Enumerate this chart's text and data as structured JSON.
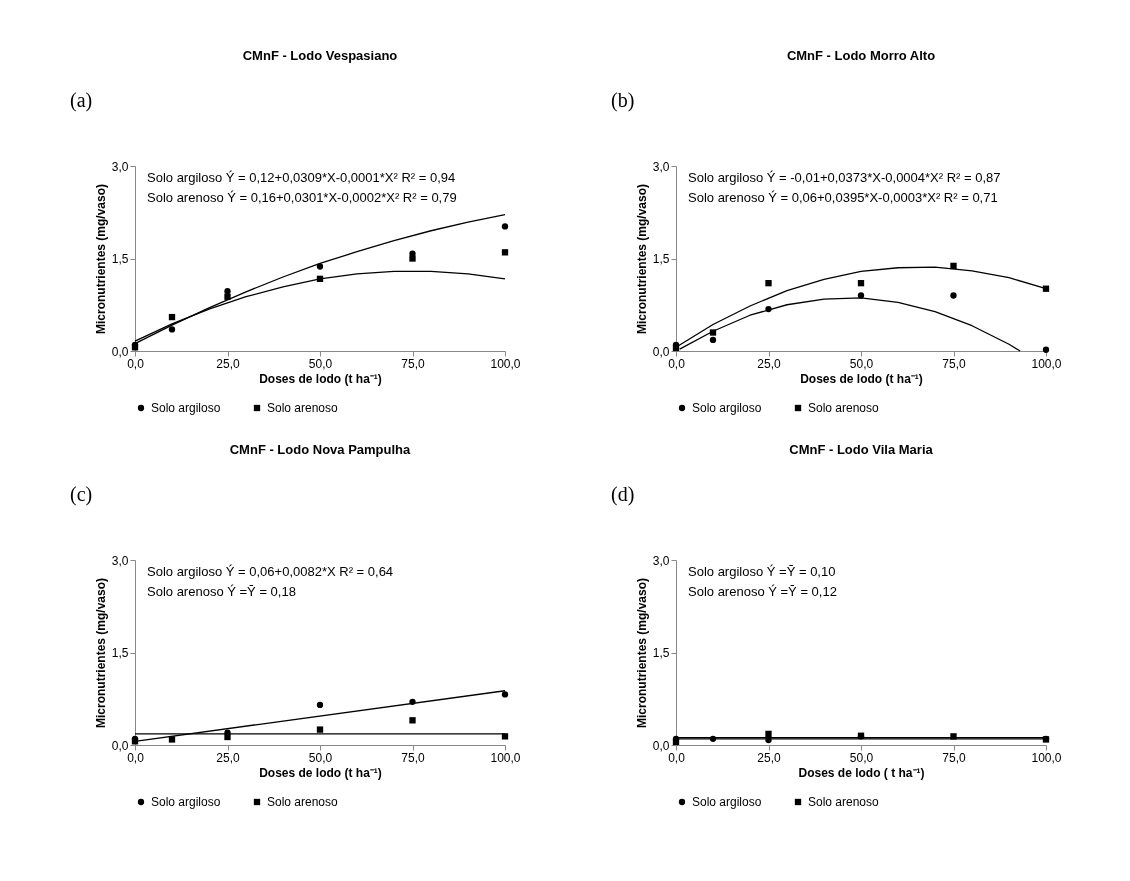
{
  "chart_data": [
    {
      "type": "scatter",
      "title": "CMnF - Lodo Vespasiano",
      "xlabel": "Doses de lodo (t ha⁻¹)",
      "ylabel": "Micronutrientes (mg/vaso)",
      "annotations": [
        "(a)",
        "Solo argiloso  Ý = 0,12+0,0309*X-0,0001*X²   R² = 0,94",
        "Solo arenoso  Ý = 0,16+0,0301*X-0,0002*X²   R² = 0,79"
      ],
      "x": [
        0,
        10,
        25,
        50,
        75,
        100
      ],
      "xlim": [
        0,
        100
      ],
      "ylim": [
        0,
        3
      ],
      "xticks": [
        {
          "value": 0,
          "label": "0,0"
        },
        {
          "value": 25,
          "label": "25,0"
        },
        {
          "value": 50,
          "label": "50,0"
        },
        {
          "value": 75,
          "label": "75,0"
        },
        {
          "value": 100,
          "label": "100,0"
        }
      ],
      "yticks": [
        {
          "value": 0,
          "label": "0,0"
        },
        {
          "value": 1.5,
          "label": "1,5"
        },
        {
          "value": 3,
          "label": "3,0"
        }
      ],
      "grid": false,
      "legend": "bottom",
      "series": [
        {
          "name": "Solo argiloso",
          "color": "#000000",
          "marker": "circle",
          "values": [
            0.1,
            0.35,
            0.97,
            1.37,
            1.58,
            2.02
          ]
        },
        {
          "name": "Solo arenoso",
          "color": "#000000",
          "marker": "square",
          "values": [
            0.06,
            0.55,
            0.88,
            1.17,
            1.5,
            1.6
          ]
        },
        {
          "type": "line",
          "color": "#000000",
          "x": [
            0,
            10,
            20,
            30,
            40,
            50,
            60,
            70,
            80,
            90,
            100
          ],
          "values": [
            0.12,
            0.42,
            0.7,
            0.96,
            1.2,
            1.42,
            1.61,
            1.79,
            1.95,
            2.09,
            2.21
          ]
        },
        {
          "type": "line",
          "color": "#000000",
          "x": [
            0,
            10,
            20,
            30,
            40,
            50,
            60,
            70,
            80,
            90,
            100
          ],
          "values": [
            0.16,
            0.44,
            0.68,
            0.88,
            1.04,
            1.17,
            1.25,
            1.29,
            1.29,
            1.25,
            1.17
          ]
        }
      ]
    },
    {
      "type": "scatter",
      "title": "CMnF - Lodo Morro Alto",
      "xlabel": "Doses de lodo (t ha⁻¹)",
      "ylabel": "Micronutrientes (mg/vaso)",
      "annotations": [
        "(b)",
        "Solo argiloso  Ý = -0,01+0,0373*X-0,0004*X²   R² = 0,87",
        "Solo arenoso  Ý = 0,06+0,0395*X-0,0003*X²   R² = 0,71"
      ],
      "x": [
        0,
        10,
        25,
        50,
        75,
        100
      ],
      "xlim": [
        0,
        100
      ],
      "ylim": [
        0,
        3
      ],
      "xticks": [
        {
          "value": 0,
          "label": "0,0"
        },
        {
          "value": 25,
          "label": "25,0"
        },
        {
          "value": 50,
          "label": "50,0"
        },
        {
          "value": 75,
          "label": "75,0"
        },
        {
          "value": 100,
          "label": "100,0"
        }
      ],
      "yticks": [
        {
          "value": 0,
          "label": "0,0"
        },
        {
          "value": 1.5,
          "label": "1,5"
        },
        {
          "value": 3,
          "label": "3,0"
        }
      ],
      "grid": false,
      "legend": "bottom",
      "series": [
        {
          "name": "Solo argiloso",
          "color": "#000000",
          "marker": "circle",
          "values": [
            0.1,
            0.18,
            0.68,
            0.9,
            0.9,
            0.02
          ]
        },
        {
          "name": "Solo arenoso",
          "color": "#000000",
          "marker": "square",
          "values": [
            0.05,
            0.3,
            1.1,
            1.1,
            1.38,
            1.01
          ]
        },
        {
          "type": "line",
          "color": "#000000",
          "x": [
            1,
            10,
            20,
            30,
            40,
            50,
            60,
            70,
            80,
            90,
            93
          ],
          "values": [
            0.03,
            0.32,
            0.58,
            0.75,
            0.84,
            0.86,
            0.79,
            0.64,
            0.41,
            0.11,
            0
          ]
        },
        {
          "type": "line",
          "color": "#000000",
          "x": [
            0,
            10,
            20,
            30,
            40,
            50,
            60,
            70,
            80,
            90,
            100
          ],
          "values": [
            0.06,
            0.43,
            0.73,
            0.98,
            1.16,
            1.29,
            1.35,
            1.36,
            1.3,
            1.19,
            1.01
          ]
        }
      ]
    },
    {
      "type": "scatter",
      "title": "CMnF - Lodo Nova Pampulha",
      "xlabel": "Doses de lodo (t ha⁻¹)",
      "ylabel": "Micronutrientes (mg/vaso)",
      "annotations": [
        "(c)",
        "Solo argiloso  Ý = 0,06+0,0082*X    R² = 0,64",
        "Solo arenoso  Ý =Ȳ = 0,18"
      ],
      "x": [
        0,
        10,
        25,
        50,
        75,
        100
      ],
      "xlim": [
        0,
        100
      ],
      "ylim": [
        0,
        3
      ],
      "xticks": [
        {
          "value": 0,
          "label": "0,0"
        },
        {
          "value": 25,
          "label": "25,0"
        },
        {
          "value": 50,
          "label": "50,0"
        },
        {
          "value": 75,
          "label": "75,0"
        },
        {
          "value": 100,
          "label": "100,0"
        }
      ],
      "yticks": [
        {
          "value": 0,
          "label": "0,0"
        },
        {
          "value": 1.5,
          "label": "1,5"
        },
        {
          "value": 3,
          "label": "3,0"
        }
      ],
      "grid": false,
      "legend": "bottom",
      "series": [
        {
          "name": "Solo argiloso",
          "color": "#000000",
          "marker": "circle",
          "values": [
            0.1,
            null,
            0.2,
            0.65,
            0.7,
            0.82
          ]
        },
        {
          "name": "Solo arenoso",
          "color": "#000000",
          "marker": "square",
          "values": [
            0.06,
            0.09,
            0.13,
            0.25,
            0.4,
            0.14
          ]
        },
        {
          "type": "line",
          "color": "#000000",
          "x": [
            0,
            100
          ],
          "values": [
            0.06,
            0.88
          ]
        },
        {
          "type": "line",
          "color": "#000000",
          "x": [
            0,
            100
          ],
          "values": [
            0.18,
            0.18
          ]
        }
      ]
    },
    {
      "type": "scatter",
      "title": "CMnF - Lodo Vila Maria",
      "xlabel": "Doses de lodo ( t ha⁻¹)",
      "ylabel": "Micronutrientes (mg/vaso)",
      "annotations": [
        "(d)",
        "Solo argiloso  Ý =Ȳ = 0,10",
        "Solo arenoso  Ý =Ȳ = 0,12"
      ],
      "x": [
        0,
        10,
        25,
        50,
        75,
        100
      ],
      "xlim": [
        0,
        100
      ],
      "ylim": [
        0,
        3
      ],
      "xticks": [
        {
          "value": 0,
          "label": "0,0"
        },
        {
          "value": 25,
          "label": "25,0"
        },
        {
          "value": 50,
          "label": "50,0"
        },
        {
          "value": 75,
          "label": "75,0"
        },
        {
          "value": 100,
          "label": "100,0"
        }
      ],
      "yticks": [
        {
          "value": 0,
          "label": "0,0"
        },
        {
          "value": 1.5,
          "label": "1,5"
        },
        {
          "value": 3,
          "label": "3,0"
        }
      ],
      "grid": false,
      "legend": "bottom",
      "series": [
        {
          "name": "Solo argiloso",
          "color": "#000000",
          "marker": "circle",
          "values": [
            0.1,
            0.1,
            0.08,
            0.14,
            null,
            0.1
          ]
        },
        {
          "name": "Solo arenoso",
          "color": "#000000",
          "marker": "square",
          "values": [
            0.05,
            null,
            0.18,
            0.15,
            0.14,
            0.09
          ]
        },
        {
          "type": "line",
          "color": "#000000",
          "x": [
            0,
            100
          ],
          "values": [
            0.1,
            0.1
          ]
        },
        {
          "type": "line",
          "color": "#000000",
          "x": [
            0,
            100
          ],
          "values": [
            0.12,
            0.12
          ]
        }
      ]
    }
  ]
}
